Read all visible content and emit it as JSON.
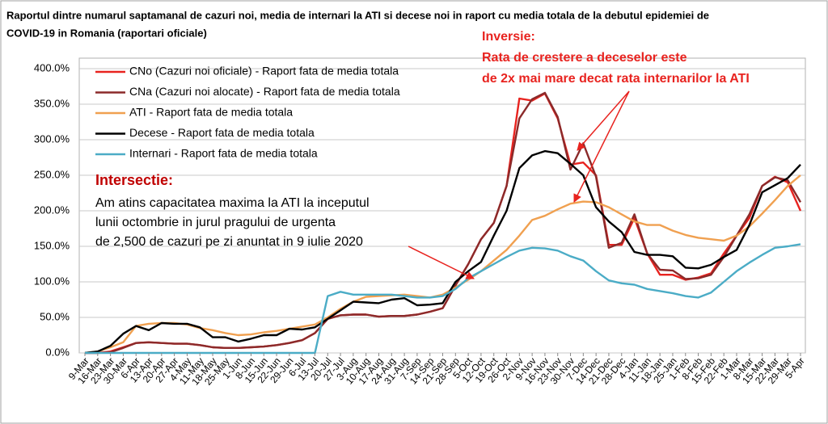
{
  "chart_data": {
    "type": "line",
    "title": [
      "Raportul dintre numarul saptamanal de cazuri noi, media de internari la ATI si decese noi in raport cu media totala de la debutul epidemiei de",
      "COVID-19 in Romania (raportari oficiale)"
    ],
    "categories": [
      "9-Mar",
      "16-Mar",
      "23-Mar",
      "30-Mar",
      "6-Apr",
      "13-Apr",
      "20-Apr",
      "27-Apr",
      "4-May",
      "11-May",
      "18-May",
      "25-May",
      "1-Jun",
      "8-Jun",
      "15-Jun",
      "22-Jun",
      "29-Jun",
      "6-Jul",
      "13-Jul",
      "20-Jul",
      "27-Jul",
      "3-Aug",
      "10-Aug",
      "17-Aug",
      "24-Aug",
      "31-Aug",
      "7-Sep",
      "14-Sep",
      "21-Sep",
      "28-Sep",
      "5-Oct",
      "12-Oct",
      "19-Oct",
      "26-Oct",
      "2-Nov",
      "9-Nov",
      "16-Nov",
      "23-Nov",
      "30-Nov",
      "7-Dec",
      "14-Dec",
      "21-Dec",
      "28-Dec",
      "4-Jan",
      "11-Jan",
      "18-Jan",
      "25-Jan",
      "1-Feb",
      "8-Feb",
      "15-Feb",
      "22-Feb",
      "1-Mar",
      "8-Mar",
      "15-Mar",
      "22-Mar",
      "29-Mar",
      "5-Apr"
    ],
    "series": [
      {
        "name": "CNo (Cazuri noi oficiale) - Raport fata de media totala",
        "color": "#e8231f",
        "values": [
          0,
          0,
          2,
          8,
          14,
          15,
          14,
          13,
          13,
          11,
          8,
          7,
          7,
          8,
          9,
          11,
          14,
          18,
          28,
          48,
          53,
          54,
          54,
          51,
          52,
          52,
          54,
          58,
          63,
          95,
          125,
          160,
          183,
          235,
          358,
          355,
          365,
          330,
          265,
          268,
          250,
          152,
          152,
          190,
          140,
          110,
          110,
          103,
          106,
          112,
          140,
          165,
          190,
          235,
          248,
          240,
          200
        ]
      },
      {
        "name": "CNa (Cazuri noi alocate) - Raport fata de media totala",
        "color": "#8b2a2a",
        "values": [
          0,
          0,
          1,
          7,
          14,
          15,
          14,
          13,
          13,
          11,
          8,
          7,
          7,
          8,
          9,
          11,
          14,
          18,
          28,
          48,
          53,
          54,
          54,
          51,
          52,
          52,
          54,
          58,
          63,
          95,
          125,
          160,
          183,
          235,
          330,
          357,
          366,
          332,
          258,
          295,
          248,
          148,
          155,
          195,
          140,
          117,
          116,
          104,
          105,
          110,
          135,
          165,
          195,
          235,
          247,
          243,
          212
        ]
      },
      {
        "name": "ATI - Raport fata de media totala",
        "color": "#f0a050",
        "values": [
          0,
          2,
          8,
          15,
          38,
          41,
          42,
          42,
          40,
          35,
          32,
          28,
          25,
          26,
          29,
          31,
          34,
          37,
          40,
          50,
          62,
          72,
          79,
          80,
          81,
          82,
          80,
          78,
          82,
          92,
          103,
          115,
          130,
          145,
          165,
          187,
          193,
          202,
          210,
          213,
          212,
          205,
          195,
          185,
          180,
          180,
          172,
          166,
          162,
          160,
          158,
          165,
          178,
          196,
          215,
          235,
          250
        ]
      },
      {
        "name": "Decese - Raport fata de media totala",
        "color": "#000000",
        "values": [
          0,
          2,
          10,
          27,
          38,
          32,
          42,
          41,
          41,
          36,
          22,
          22,
          16,
          20,
          25,
          25,
          34,
          33,
          36,
          48,
          60,
          72,
          71,
          70,
          75,
          77,
          67,
          68,
          70,
          100,
          115,
          128,
          165,
          200,
          260,
          278,
          284,
          281,
          266,
          250,
          205,
          185,
          170,
          142,
          138,
          138,
          136,
          120,
          119,
          124,
          135,
          145,
          180,
          226,
          236,
          246,
          265
        ]
      },
      {
        "name": "Internari - Raport fata de media totala",
        "color": "#4bacc6",
        "values": [
          0,
          0,
          0,
          0,
          0,
          0,
          0,
          0,
          0,
          0,
          0,
          0,
          0,
          0,
          0,
          0,
          0,
          0,
          0,
          80,
          86,
          82,
          82,
          82,
          82,
          80,
          78,
          78,
          80,
          90,
          105,
          115,
          125,
          135,
          144,
          148,
          147,
          144,
          136,
          130,
          115,
          102,
          98,
          96,
          90,
          87,
          84,
          80,
          78,
          85,
          100,
          115,
          127,
          138,
          148,
          150,
          153
        ]
      }
    ],
    "ylim": [
      0,
      400
    ],
    "yticks": [
      {
        "value": 0,
        "label": "0.0%"
      },
      {
        "value": 50,
        "label": "50.0%"
      },
      {
        "value": 100,
        "label": "100.0%"
      },
      {
        "value": 150,
        "label": "150.0%"
      },
      {
        "value": 200,
        "label": "200.0%"
      },
      {
        "value": 250,
        "label": "250.0%"
      },
      {
        "value": 300,
        "label": "300.0%"
      },
      {
        "value": 350,
        "label": "350.0%"
      },
      {
        "value": 400,
        "label": "400.0%"
      }
    ],
    "grid": true,
    "annotations": {
      "inversie": {
        "title": "Inversie:",
        "lines": [
          "Rata de crestere a deceselor este",
          "de 2x mai mare decat rata internarilor la ATI"
        ]
      },
      "intersectie": {
        "title": "Intersectie:",
        "lines": [
          "Am atins capacitatea maxima la ATI la inceputul",
          "lunii octombrie in jurul pragului de urgenta",
          "de 2,500 de cazuri pe zi anuntat in 9 iulie 2020"
        ]
      }
    }
  }
}
